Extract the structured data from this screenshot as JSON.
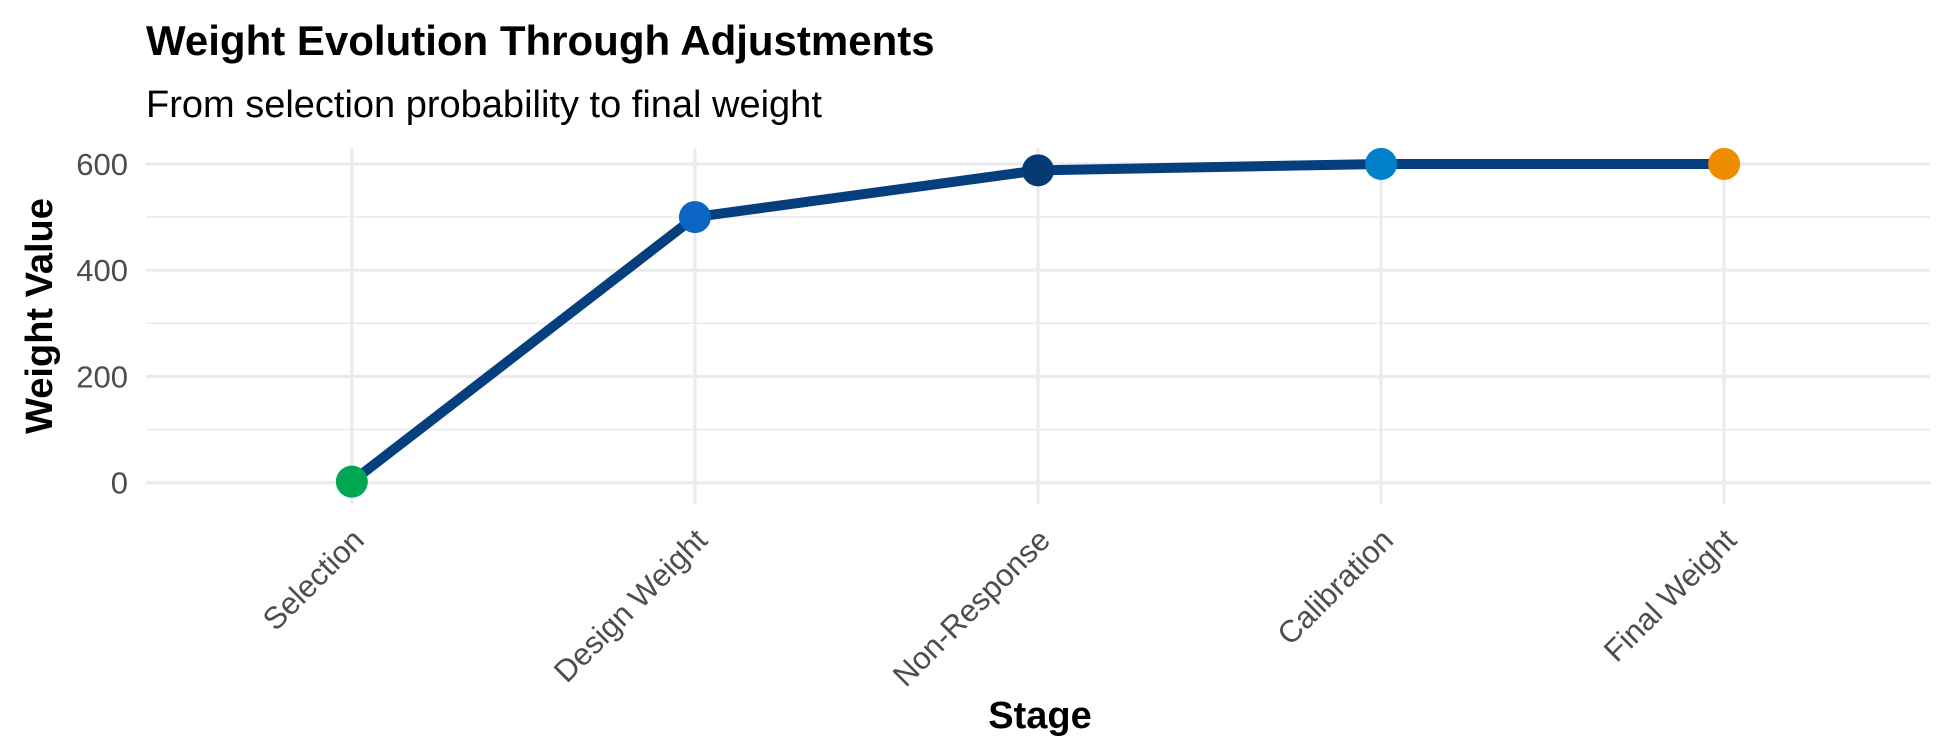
{
  "chart_data": {
    "type": "line",
    "title": "Weight Evolution Through Adjustments",
    "subtitle": "From selection probability to final weight",
    "xlabel": "Stage",
    "ylabel": "Weight Value",
    "categories": [
      "Selection",
      "Design Weight",
      "Non-Response",
      "Calibration",
      "Final Weight"
    ],
    "values": [
      2,
      500,
      588,
      600,
      600
    ],
    "point_colors": [
      "#00A651",
      "#0A66C2",
      "#063A73",
      "#0081C9",
      "#F08C00"
    ],
    "line_color": "#063F7D",
    "ylim": [
      -40,
      630
    ],
    "yticks": [
      0,
      200,
      400,
      600
    ],
    "y_minor_ticks": [
      100,
      300,
      500
    ],
    "grid": true,
    "legend": "none"
  }
}
